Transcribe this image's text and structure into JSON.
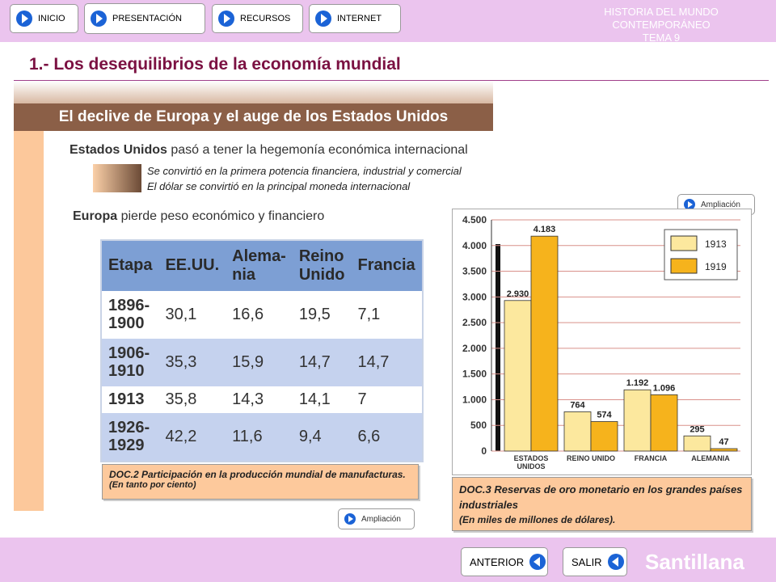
{
  "nav": [
    "INICIO",
    "PRESENTACIÓN",
    "RECURSOS",
    "INTERNET"
  ],
  "course": {
    "title": "HISTORIA DEL MUNDO CONTEMPORÁNEO",
    "unit": "TEMA 9"
  },
  "title": "1.- Los desequilibrios de la economía mundial",
  "section": "El declive de Europa y el auge de los Estados Unidos",
  "usa": {
    "subject": "Estados Unidos",
    "text": "pasó a tener la hegemonía económica internacional",
    "points": [
      "Se convirtió en la primera potencia financiera, industrial y comercial",
      "El dólar se convirtió en la principal moneda internacional"
    ]
  },
  "europe": {
    "subject": "Europa",
    "text": "pierde peso económico y financiero"
  },
  "table": {
    "header": [
      "Etapa",
      "EE.UU.",
      "Alema-nia",
      "Reino Unido",
      "Francia"
    ],
    "rows": [
      [
        "1896-1900",
        "30,1",
        "16,6",
        "19,5",
        "7,1"
      ],
      [
        "1906-1910",
        "35,3",
        "15,9",
        "14,7",
        "14,7"
      ],
      [
        "1913",
        "35,8",
        "14,3",
        "14,1",
        "7"
      ],
      [
        "1926-1929",
        "42,2",
        "11,6",
        "9,4",
        "6,6"
      ]
    ],
    "caption": {
      "title": "DOC.2  Participación en la producción mundial de manufacturas.",
      "note": "(En tanto por ciento)"
    }
  },
  "chart_data": {
    "type": "bar",
    "categories": [
      "ESTADOS UNIDOS",
      "REINO UNIDO",
      "FRANCIA",
      "ALEMANIA"
    ],
    "series": [
      {
        "name": "1913",
        "color": "#fce89e",
        "values": [
          2930,
          764,
          1192,
          295
        ],
        "value_labels": [
          "2.930",
          "764",
          "1.192",
          "295"
        ]
      },
      {
        "name": "1919",
        "color": "#f6b31c",
        "values": [
          4183,
          574,
          1096,
          47
        ],
        "value_labels": [
          "4.183",
          "574",
          "1.096",
          "47"
        ]
      }
    ],
    "ylim": [
      0,
      4500
    ],
    "yticks": [
      0,
      500,
      {
        "value": 1000,
        "label": "1.000"
      },
      {
        "value": 1500,
        "label": "1.500"
      },
      {
        "value": 2000,
        "label": "2.000"
      },
      {
        "value": 2500,
        "label": "2.500"
      },
      {
        "value": 3000,
        "label": "3.000"
      },
      {
        "value": 3500,
        "label": "3.500"
      },
      {
        "value": 4000,
        "label": "4.000"
      },
      {
        "value": 4500,
        "label": "4.500"
      }
    ],
    "grid": true,
    "caption": {
      "title": "DOC.3 Reservas de oro monetario en los grandes países industriales",
      "note": "(En miles de millones de dólares)."
    }
  },
  "links": {
    "more1": "Ampliación",
    "more2": "Ampliación"
  },
  "footer": {
    "prev": "ANTERIOR",
    "exit": "SALIR",
    "brand": "Santillana"
  }
}
